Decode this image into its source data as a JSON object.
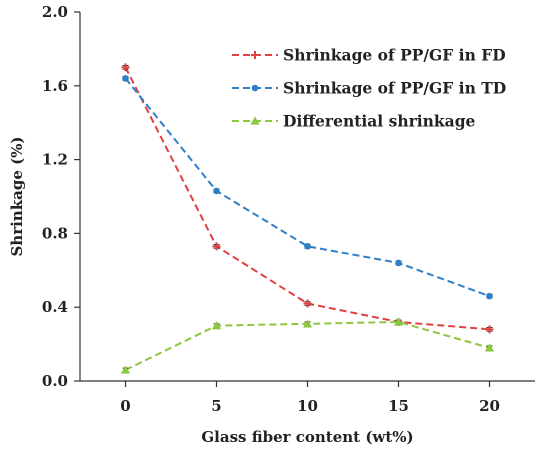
{
  "chart_data": {
    "type": "line",
    "title": "",
    "xlabel": "Glass fiber content (wt%)",
    "ylabel": "Shrinkage (%)",
    "x": [
      0,
      5,
      10,
      15,
      20
    ],
    "xticks": [
      "0",
      "5",
      "10",
      "15",
      "20"
    ],
    "xlim": [
      -2.5,
      22.5
    ],
    "ylim": [
      0,
      2.0
    ],
    "yticks": [
      "0.0",
      "0.4",
      "0.8",
      "1.2",
      "1.6",
      "2.0"
    ],
    "grid": false,
    "legend_position": "top-right",
    "series": [
      {
        "name": "Shrinkage of PP/GF in FD",
        "values": [
          1.7,
          0.73,
          0.42,
          0.32,
          0.28
        ],
        "errors": [
          0.01,
          0.01,
          0.01,
          0.01,
          0.01
        ],
        "color": "#e04040",
        "marker": "plus"
      },
      {
        "name": "Shrinkage of PP/GF in TD",
        "values": [
          1.64,
          1.03,
          0.73,
          0.64,
          0.46
        ],
        "errors": [
          0.01,
          0.01,
          0.01,
          0.01,
          0.01
        ],
        "color": "#2f7fc8",
        "marker": "circle"
      },
      {
        "name": "Differential shrinkage",
        "values": [
          0.06,
          0.3,
          0.31,
          0.32,
          0.18
        ],
        "errors": [
          0.01,
          0.01,
          0.01,
          0.01,
          0.01
        ],
        "color": "#8dc63f",
        "marker": "triangle"
      }
    ]
  }
}
